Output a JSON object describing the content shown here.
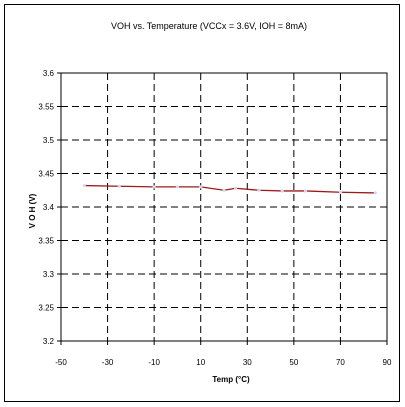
{
  "chart_data": {
    "type": "line",
    "title": "VOH vs. Temperature (VCCx = 3.6V, IOH = 8mA)",
    "xlabel": "Temp (°C)",
    "ylabel": "V O H  (V)",
    "xlim": [
      -50,
      90
    ],
    "ylim": [
      3.2,
      3.6
    ],
    "x_ticks": [
      -50,
      -30,
      -10,
      10,
      30,
      50,
      70,
      90
    ],
    "y_ticks": [
      3.2,
      3.25,
      3.3,
      3.35,
      3.4,
      3.45,
      3.5,
      3.55,
      3.6
    ],
    "y_tick_labels": [
      "3.2",
      "3.25",
      "3.3",
      "3.35",
      "3.4",
      "3.45",
      "3.5",
      "3.55",
      "3.6"
    ],
    "grid": true,
    "series": [
      {
        "color": "#9b1b1b",
        "marker_color": "#d0d7f0",
        "x": [
          -40,
          -25,
          -10,
          0,
          10,
          20,
          25,
          35,
          45,
          55,
          70,
          85
        ],
        "y": [
          3.432,
          3.431,
          3.43,
          3.43,
          3.43,
          3.425,
          3.428,
          3.425,
          3.424,
          3.424,
          3.422,
          3.421
        ]
      }
    ]
  }
}
